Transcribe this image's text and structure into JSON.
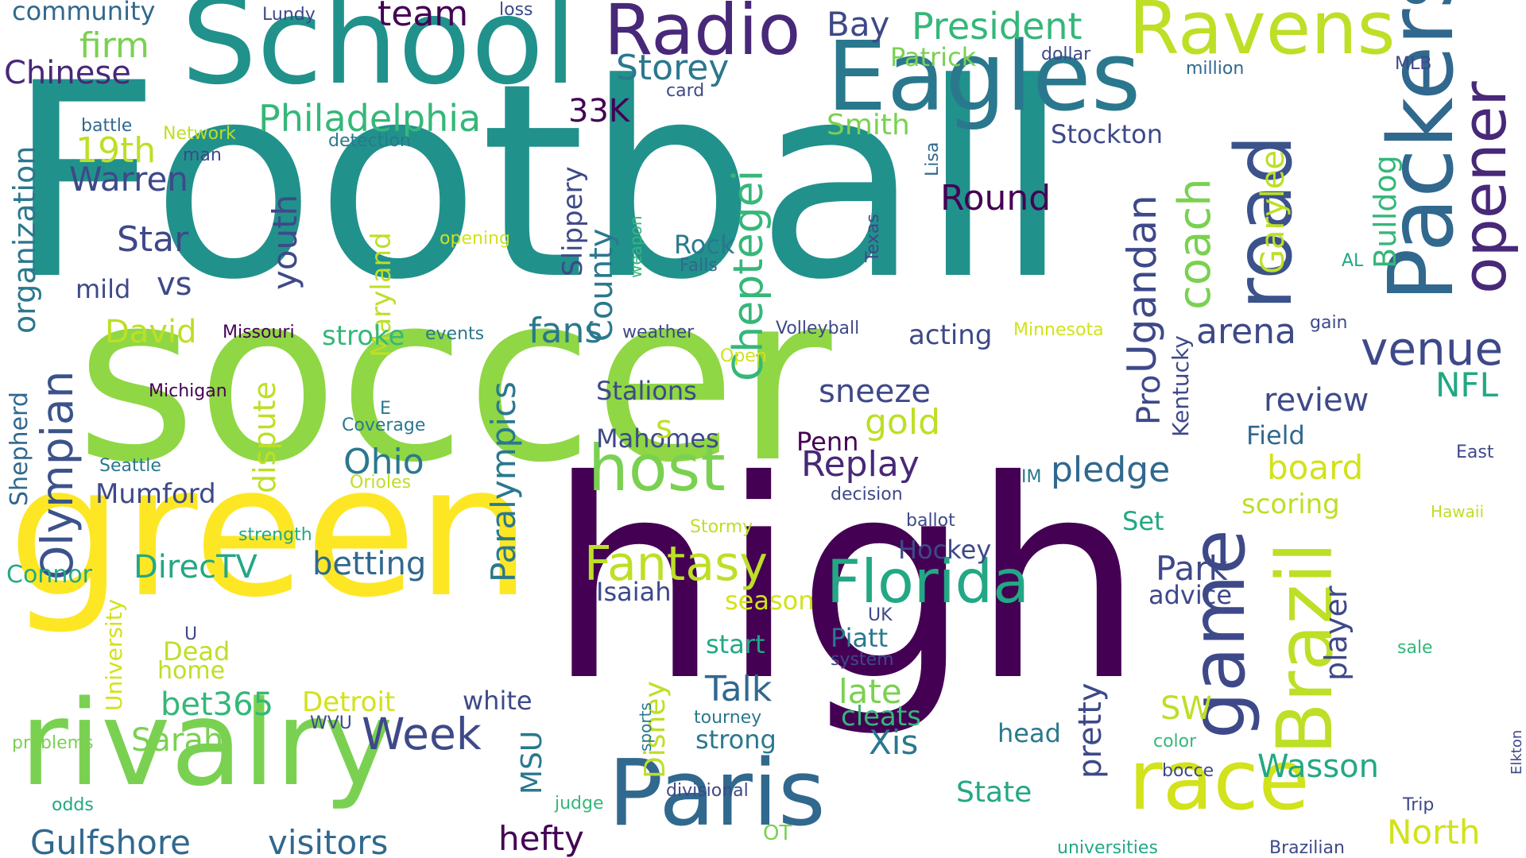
{
  "words": [
    {
      "text": "Football",
      "color": "#21918c"
    },
    {
      "text": "soccer",
      "color": "#8fd744"
    },
    {
      "text": "high",
      "color": "#440154"
    },
    {
      "text": "green",
      "color": "#fde725"
    },
    {
      "text": "School",
      "color": "#21918c"
    },
    {
      "text": "rivalry",
      "color": "#7ad151"
    },
    {
      "text": "Eagles",
      "color": "#2a788e"
    },
    {
      "text": "Packers",
      "color": "#31688e"
    },
    {
      "text": "Paris",
      "color": "#31688e"
    },
    {
      "text": "road",
      "color": "#3b528b"
    },
    {
      "text": "Brazil",
      "color": "#bddf26"
    },
    {
      "text": "race",
      "color": "#d2e21b"
    },
    {
      "text": "game",
      "color": "#3e4989"
    },
    {
      "text": "opener",
      "color": "#482878"
    },
    {
      "text": "Radio",
      "color": "#482878"
    },
    {
      "text": "Ravens",
      "color": "#bddf26"
    },
    {
      "text": "Florida",
      "color": "#22a884"
    },
    {
      "text": "host",
      "color": "#7ad151"
    },
    {
      "text": "Fantasy",
      "color": "#bddf26"
    },
    {
      "text": "Olympian",
      "color": "#3b528b"
    },
    {
      "text": "Cheptegei",
      "color": "#35b779"
    },
    {
      "text": "venue",
      "color": "#3e4989"
    },
    {
      "text": "Week",
      "color": "#3e4989"
    },
    {
      "text": "coach",
      "color": "#7ad151"
    },
    {
      "text": "Ugandan",
      "color": "#3e4989"
    },
    {
      "text": "President",
      "color": "#35b779"
    },
    {
      "text": "Philadelphia",
      "color": "#35b779"
    },
    {
      "text": "team",
      "color": "#440154"
    },
    {
      "text": "Chinese",
      "color": "#482878"
    },
    {
      "text": "Warren",
      "color": "#3e4989"
    },
    {
      "text": "Storey",
      "color": "#2a788e"
    },
    {
      "text": "Bay",
      "color": "#3e4989"
    },
    {
      "text": "firm",
      "color": "#7ad151"
    },
    {
      "text": "19th",
      "color": "#bddf26"
    },
    {
      "text": "Star",
      "color": "#3e4989"
    },
    {
      "text": "vs",
      "color": "#3e4989"
    },
    {
      "text": "mild",
      "color": "#3e4989"
    },
    {
      "text": "youth",
      "color": "#3e4989"
    },
    {
      "text": "Maryland",
      "color": "#bddf26"
    },
    {
      "text": "County",
      "color": "#2a788e"
    },
    {
      "text": "Slippery",
      "color": "#3e4989"
    },
    {
      "text": "33K",
      "color": "#440154"
    },
    {
      "text": "organization",
      "color": "#2a788e"
    },
    {
      "text": "Round",
      "color": "#440154"
    },
    {
      "text": "Rock",
      "color": "#2a788e"
    },
    {
      "text": "Garylee",
      "color": "#bddf26"
    },
    {
      "text": "Bulldog",
      "color": "#35b779"
    },
    {
      "text": "Smith",
      "color": "#7ad151"
    },
    {
      "text": "Patrick",
      "color": "#7ad151"
    },
    {
      "text": "Stockton",
      "color": "#3e4989"
    },
    {
      "text": "David",
      "color": "#bddf26"
    },
    {
      "text": "stroke",
      "color": "#35b779"
    },
    {
      "text": "fans",
      "color": "#2a788e"
    },
    {
      "text": "acting",
      "color": "#3e4989"
    },
    {
      "text": "arena",
      "color": "#3e4989"
    },
    {
      "text": "Shepherd",
      "color": "#31688e"
    },
    {
      "text": "dispute",
      "color": "#bddf26"
    },
    {
      "text": "Paralympics",
      "color": "#2a788e"
    },
    {
      "text": "Ohio",
      "color": "#2a788e"
    },
    {
      "text": "Mumford",
      "color": "#3e4989"
    },
    {
      "text": "Stalions",
      "color": "#3e4989"
    },
    {
      "text": "Mahomes",
      "color": "#3e4989"
    },
    {
      "text": "s",
      "color": "#bddf26"
    },
    {
      "text": "sneeze",
      "color": "#3e4989"
    },
    {
      "text": "gold",
      "color": "#bddf26"
    },
    {
      "text": "Replay",
      "color": "#482878"
    },
    {
      "text": "Penn",
      "color": "#440154"
    },
    {
      "text": "review",
      "color": "#3e4989"
    },
    {
      "text": "NFL",
      "color": "#22a884"
    },
    {
      "text": "pledge",
      "color": "#31688e"
    },
    {
      "text": "Pro",
      "color": "#3e4989"
    },
    {
      "text": "Kentucky",
      "color": "#3e4989"
    },
    {
      "text": "Field",
      "color": "#31688e"
    },
    {
      "text": "board",
      "color": "#d2e21b"
    },
    {
      "text": "scoring",
      "color": "#bddf26"
    },
    {
      "text": "Set",
      "color": "#22a884"
    },
    {
      "text": "DirecTV",
      "color": "#22a884"
    },
    {
      "text": "betting",
      "color": "#31688e"
    },
    {
      "text": "Connor",
      "color": "#22a884"
    },
    {
      "text": "Hockey",
      "color": "#3e4989"
    },
    {
      "text": "Park",
      "color": "#3e4989"
    },
    {
      "text": "advice",
      "color": "#3e4989"
    },
    {
      "text": "Isaiah",
      "color": "#3e4989"
    },
    {
      "text": "season",
      "color": "#d2e21b"
    },
    {
      "text": "player",
      "color": "#3e4989"
    },
    {
      "text": "start",
      "color": "#22a884"
    },
    {
      "text": "Piatt",
      "color": "#2a788e"
    },
    {
      "text": "Dead",
      "color": "#bddf26"
    },
    {
      "text": "home",
      "color": "#bddf26"
    },
    {
      "text": "bet365",
      "color": "#35b779"
    },
    {
      "text": "Detroit",
      "color": "#d2e21b"
    },
    {
      "text": "Sarah",
      "color": "#7ad151"
    },
    {
      "text": "University",
      "color": "#d2e21b"
    },
    {
      "text": "Talk",
      "color": "#31688e"
    },
    {
      "text": "late",
      "color": "#7ad151"
    },
    {
      "text": "cleats",
      "color": "#35b779"
    },
    {
      "text": "Xis",
      "color": "#2a788e"
    },
    {
      "text": "white",
      "color": "#3e4989"
    },
    {
      "text": "Disney",
      "color": "#bddf26"
    },
    {
      "text": "MSU",
      "color": "#2a788e"
    },
    {
      "text": "pretty",
      "color": "#3e4989"
    },
    {
      "text": "SW",
      "color": "#bddf26"
    },
    {
      "text": "head",
      "color": "#2a788e"
    },
    {
      "text": "Wasson",
      "color": "#22a884"
    },
    {
      "text": "strong",
      "color": "#2a788e"
    },
    {
      "text": "State",
      "color": "#22a884"
    },
    {
      "text": "North",
      "color": "#d2e21b"
    },
    {
      "text": "Gulfshore",
      "color": "#31688e"
    },
    {
      "text": "visitors",
      "color": "#31688e"
    },
    {
      "text": "hefty",
      "color": "#440154"
    },
    {
      "text": "community",
      "color": "#31688e"
    },
    {
      "text": "Lundy",
      "color": "#3e4989"
    },
    {
      "text": "loss",
      "color": "#3e4989"
    },
    {
      "text": "card",
      "color": "#3e4989"
    },
    {
      "text": "dollar",
      "color": "#3e4989"
    },
    {
      "text": "million",
      "color": "#31688e"
    },
    {
      "text": "MLB",
      "color": "#3e4989"
    },
    {
      "text": "battle",
      "color": "#31688e"
    },
    {
      "text": "Network",
      "color": "#bddf26"
    },
    {
      "text": "man",
      "color": "#3e4989"
    },
    {
      "text": "detection",
      "color": "#2a788e"
    },
    {
      "text": "Lisa",
      "color": "#31688e"
    },
    {
      "text": "Texas",
      "color": "#3e4989"
    },
    {
      "text": "opening",
      "color": "#d2e21b"
    },
    {
      "text": "weapon",
      "color": "#35b779"
    },
    {
      "text": "Falls",
      "color": "#31688e"
    },
    {
      "text": "AL",
      "color": "#22a884"
    },
    {
      "text": "Missouri",
      "color": "#440154"
    },
    {
      "text": "events",
      "color": "#2a788e"
    },
    {
      "text": "weather",
      "color": "#3e4989"
    },
    {
      "text": "Volleyball",
      "color": "#3e4989"
    },
    {
      "text": "Minnesota",
      "color": "#d2e21b"
    },
    {
      "text": "gain",
      "color": "#3e4989"
    },
    {
      "text": "Open",
      "color": "#d2e21b"
    },
    {
      "text": "Michigan",
      "color": "#440154"
    },
    {
      "text": "E",
      "color": "#2a788e"
    },
    {
      "text": "Coverage",
      "color": "#2a788e"
    },
    {
      "text": "Seattle",
      "color": "#2a788e"
    },
    {
      "text": "Orioles",
      "color": "#bddf26"
    },
    {
      "text": "strength",
      "color": "#22a884"
    },
    {
      "text": "IM",
      "color": "#2a788e"
    },
    {
      "text": "decision",
      "color": "#3e4989"
    },
    {
      "text": "ballot",
      "color": "#3e4989"
    },
    {
      "text": "Stormy",
      "color": "#bddf26"
    },
    {
      "text": "East",
      "color": "#3e4989"
    },
    {
      "text": "Hawaii",
      "color": "#bddf26"
    },
    {
      "text": "U",
      "color": "#3e4989"
    },
    {
      "text": "UK",
      "color": "#3e4989"
    },
    {
      "text": "system",
      "color": "#3e4989"
    },
    {
      "text": "sale",
      "color": "#35b779"
    },
    {
      "text": "WVU",
      "color": "#3e4989"
    },
    {
      "text": "problems",
      "color": "#7ad151"
    },
    {
      "text": "sports",
      "color": "#2a788e"
    },
    {
      "text": "tourney",
      "color": "#2a788e"
    },
    {
      "text": "color",
      "color": "#35b779"
    },
    {
      "text": "bocce",
      "color": "#3e4989"
    },
    {
      "text": "Elkton",
      "color": "#3e4989"
    },
    {
      "text": "divisional",
      "color": "#3e4989"
    },
    {
      "text": "odds",
      "color": "#22a884"
    },
    {
      "text": "judge",
      "color": "#35b779"
    },
    {
      "text": "OT",
      "color": "#7ad151"
    },
    {
      "text": "Trip",
      "color": "#3e4989"
    },
    {
      "text": "universities",
      "color": "#22a884"
    },
    {
      "text": "Brazilian",
      "color": "#3e4989"
    }
  ]
}
